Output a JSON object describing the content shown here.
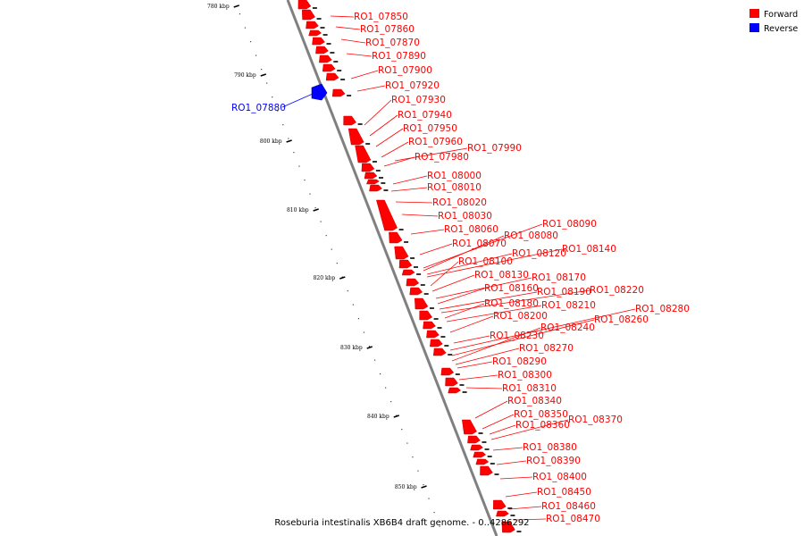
{
  "title": "Roseburia intestinalis XB6B4 draft genome. - 0..4286292",
  "legend": [
    {
      "label": "Forward",
      "color": "#ff0000"
    },
    {
      "label": "Reverse",
      "color": "#0000ff"
    }
  ],
  "ticks": [
    "780 kbp",
    "790 kbp",
    "800 kbp",
    "810 kbp",
    "820 kbp",
    "830 kbp",
    "840 kbp",
    "850 kbp"
  ],
  "genes": [
    {
      "label": "RO1_07850",
      "strand": "forward"
    },
    {
      "label": "RO1_07860",
      "strand": "forward"
    },
    {
      "label": "RO1_07870",
      "strand": "forward"
    },
    {
      "label": "RO1_07890",
      "strand": "forward"
    },
    {
      "label": "RO1_07900",
      "strand": "forward"
    },
    {
      "label": "RO1_07920",
      "strand": "forward"
    },
    {
      "label": "RO1_07930",
      "strand": "forward"
    },
    {
      "label": "RO1_07940",
      "strand": "forward"
    },
    {
      "label": "RO1_07950",
      "strand": "forward"
    },
    {
      "label": "RO1_07960",
      "strand": "forward"
    },
    {
      "label": "RO1_07990",
      "strand": "forward"
    },
    {
      "label": "RO1_07980",
      "strand": "forward"
    },
    {
      "label": "RO1_08000",
      "strand": "forward"
    },
    {
      "label": "RO1_08010",
      "strand": "forward"
    },
    {
      "label": "RO1_08020",
      "strand": "forward"
    },
    {
      "label": "RO1_08030",
      "strand": "forward"
    },
    {
      "label": "RO1_08090",
      "strand": "forward"
    },
    {
      "label": "RO1_08060",
      "strand": "forward"
    },
    {
      "label": "RO1_08080",
      "strand": "forward"
    },
    {
      "label": "RO1_08070",
      "strand": "forward"
    },
    {
      "label": "RO1_08140",
      "strand": "forward"
    },
    {
      "label": "RO1_08120",
      "strand": "forward"
    },
    {
      "label": "RO1_08100",
      "strand": "forward"
    },
    {
      "label": "RO1_08130",
      "strand": "forward"
    },
    {
      "label": "RO1_08170",
      "strand": "forward"
    },
    {
      "label": "RO1_08160",
      "strand": "forward"
    },
    {
      "label": "RO1_08190",
      "strand": "forward"
    },
    {
      "label": "RO1_08220",
      "strand": "forward"
    },
    {
      "label": "RO1_08180",
      "strand": "forward"
    },
    {
      "label": "RO1_08210",
      "strand": "forward"
    },
    {
      "label": "RO1_08280",
      "strand": "forward"
    },
    {
      "label": "RO1_08200",
      "strand": "forward"
    },
    {
      "label": "RO1_08260",
      "strand": "forward"
    },
    {
      "label": "RO1_08240",
      "strand": "forward"
    },
    {
      "label": "RO1_08230",
      "strand": "forward"
    },
    {
      "label": "RO1_08270",
      "strand": "forward"
    },
    {
      "label": "RO1_08290",
      "strand": "forward"
    },
    {
      "label": "RO1_08300",
      "strand": "forward"
    },
    {
      "label": "RO1_08310",
      "strand": "forward"
    },
    {
      "label": "RO1_08340",
      "strand": "forward"
    },
    {
      "label": "RO1_08350",
      "strand": "forward"
    },
    {
      "label": "RO1_08370",
      "strand": "forward"
    },
    {
      "label": "RO1_08360",
      "strand": "forward"
    },
    {
      "label": "RO1_08380",
      "strand": "forward"
    },
    {
      "label": "RO1_08390",
      "strand": "forward"
    },
    {
      "label": "RO1_08400",
      "strand": "forward"
    },
    {
      "label": "RO1_08450",
      "strand": "forward"
    },
    {
      "label": "RO1_08460",
      "strand": "forward"
    },
    {
      "label": "RO1_08470",
      "strand": "forward"
    },
    {
      "label": "RO1_07880",
      "strand": "reverse"
    }
  ]
}
